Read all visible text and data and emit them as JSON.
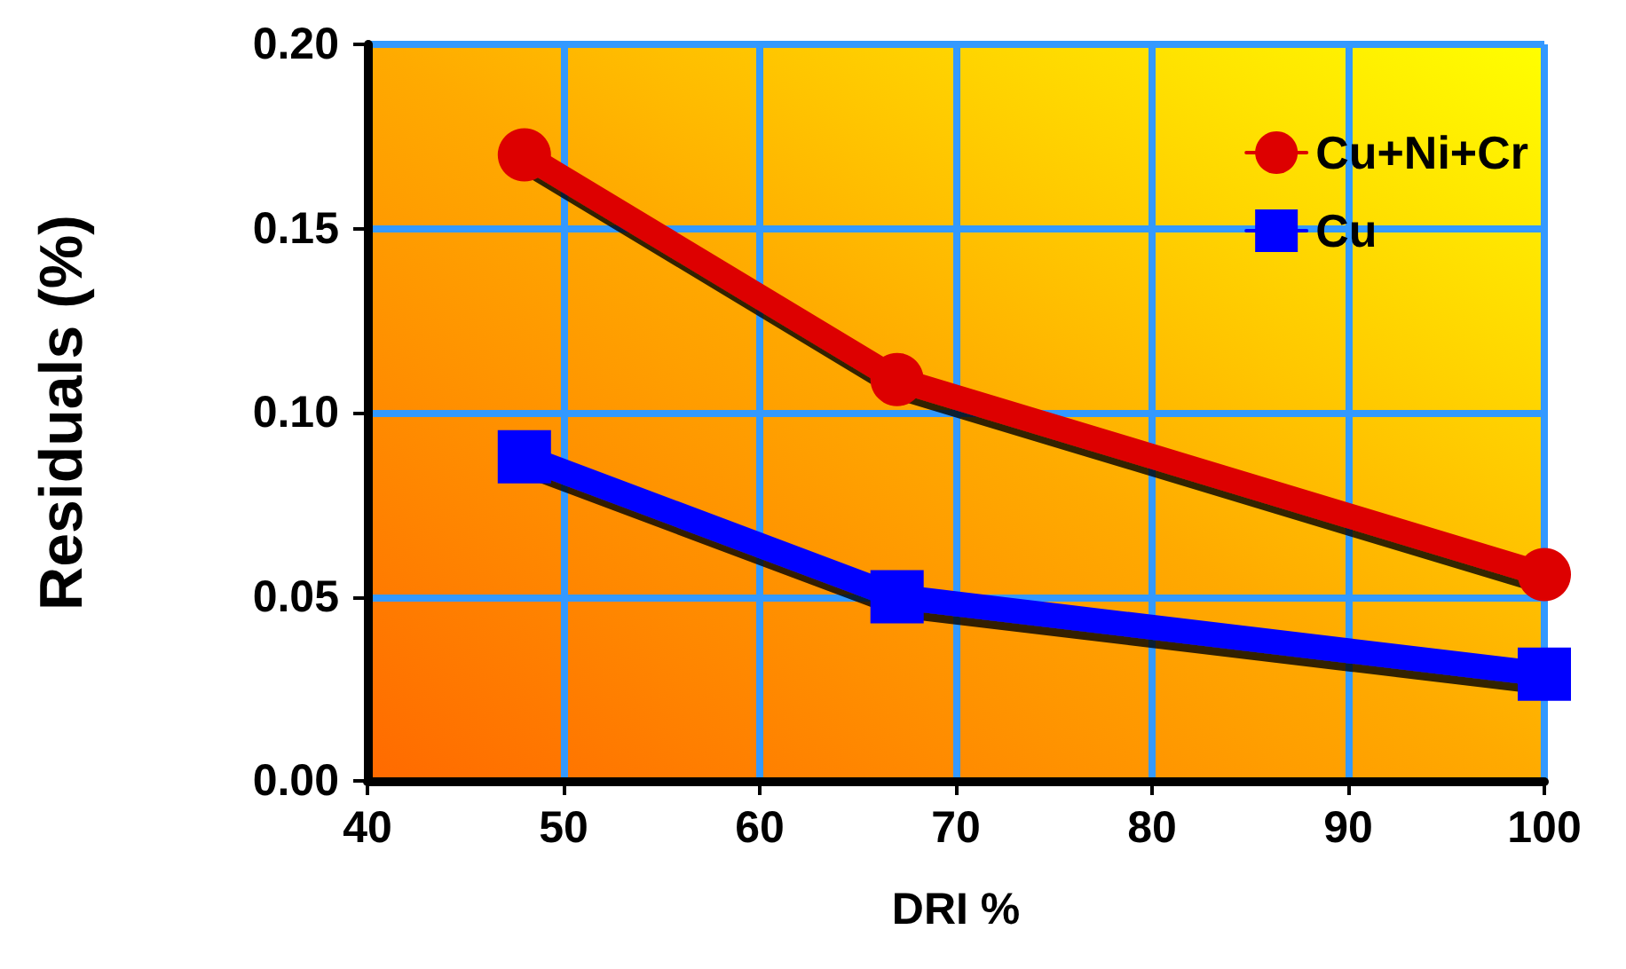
{
  "chart_data": {
    "type": "line",
    "xlabel": "DRI %",
    "ylabel": "Residuals (%)",
    "xlim": [
      40,
      100
    ],
    "xticks": [
      40,
      50,
      60,
      70,
      80,
      90,
      100
    ],
    "ylim": [
      0,
      0.2
    ],
    "yticks": [
      {
        "value": 0,
        "label": "0.00"
      },
      {
        "value": 0.05,
        "label": "0.05"
      },
      {
        "value": 0.1,
        "label": "0.10"
      },
      {
        "value": 0.15,
        "label": "0.15"
      },
      {
        "value": 0.2,
        "label": "0.20"
      }
    ],
    "grid": true,
    "legend": "top right",
    "line_style": "solid",
    "series": [
      {
        "name": "Cu+Ni+Cr",
        "color": "#dd0000",
        "marker": "circle",
        "x": [
          48,
          67,
          100
        ],
        "values": [
          0.17,
          0.109,
          0.056
        ]
      },
      {
        "name": "Cu",
        "color": "#0000ff",
        "marker": "square",
        "x": [
          48,
          67,
          100
        ],
        "values": [
          0.088,
          0.05,
          0.029
        ]
      }
    ]
  }
}
